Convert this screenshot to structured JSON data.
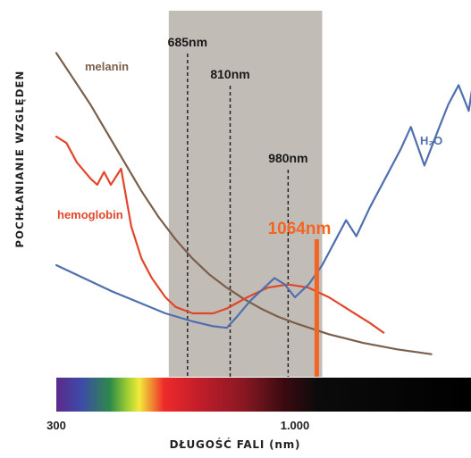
{
  "chart_data": {
    "type": "line",
    "ylabel": "POCHŁANIANIE WZGLĘDEN",
    "xlabel": "DŁUGOŚĆ FALI (nm)",
    "xticks": [
      {
        "value": 300,
        "label": "300"
      },
      {
        "value": 1000,
        "label": "1.000"
      }
    ],
    "markers": [
      {
        "wavelength": 685,
        "label": "685nm"
      },
      {
        "wavelength": 810,
        "label": "810nm"
      },
      {
        "wavelength": 980,
        "label": "980nm"
      }
    ],
    "laser": {
      "wavelength": 1064,
      "label": "1064nm",
      "color": "#f26522"
    },
    "highlight_band": [
      630,
      1080
    ],
    "series": [
      {
        "name": "melanin",
        "label": "melanin",
        "color": "#7b5f4a",
        "points": [
          [
            300,
            96
          ],
          [
            350,
            88
          ],
          [
            400,
            80
          ],
          [
            450,
            71
          ],
          [
            500,
            62
          ],
          [
            550,
            53
          ],
          [
            600,
            45
          ],
          [
            650,
            38
          ],
          [
            700,
            32
          ],
          [
            750,
            27
          ],
          [
            800,
            23
          ],
          [
            850,
            19.5
          ],
          [
            900,
            16.5
          ],
          [
            950,
            14
          ],
          [
            1000,
            12
          ],
          [
            1100,
            8.5
          ],
          [
            1200,
            5.8
          ],
          [
            1300,
            3.8
          ],
          [
            1400,
            2.3
          ]
        ]
      },
      {
        "name": "hemoglobin",
        "label": "hemoglobin",
        "color": "#e2462a",
        "points": [
          [
            300,
            70
          ],
          [
            330,
            68
          ],
          [
            360,
            62
          ],
          [
            400,
            57
          ],
          [
            420,
            55
          ],
          [
            440,
            59
          ],
          [
            460,
            55
          ],
          [
            490,
            60
          ],
          [
            520,
            42
          ],
          [
            550,
            32
          ],
          [
            580,
            26
          ],
          [
            620,
            20
          ],
          [
            650,
            17
          ],
          [
            700,
            15
          ],
          [
            760,
            15
          ],
          [
            800,
            16.5
          ],
          [
            860,
            20
          ],
          [
            920,
            23
          ],
          [
            980,
            24
          ],
          [
            1040,
            23
          ],
          [
            1100,
            20
          ],
          [
            1160,
            16
          ],
          [
            1220,
            12
          ],
          [
            1260,
            9
          ]
        ]
      },
      {
        "name": "H₂O",
        "label": "H₂O",
        "color": "#4f6fae",
        "points": [
          [
            300,
            30
          ],
          [
            380,
            26
          ],
          [
            460,
            22
          ],
          [
            540,
            18.5
          ],
          [
            620,
            15
          ],
          [
            700,
            12.5
          ],
          [
            760,
            11
          ],
          [
            800,
            10.5
          ],
          [
            830,
            14
          ],
          [
            870,
            19
          ],
          [
            910,
            23
          ],
          [
            940,
            26
          ],
          [
            970,
            24
          ],
          [
            1000,
            20
          ],
          [
            1040,
            24
          ],
          [
            1080,
            30
          ],
          [
            1120,
            38
          ],
          [
            1150,
            44
          ],
          [
            1180,
            39
          ],
          [
            1220,
            48
          ],
          [
            1270,
            58
          ],
          [
            1310,
            66
          ],
          [
            1340,
            73
          ],
          [
            1380,
            61
          ],
          [
            1420,
            72
          ],
          [
            1450,
            80
          ],
          [
            1480,
            86
          ],
          [
            1510,
            78
          ],
          [
            1530,
            92
          ],
          [
            1560,
            100
          ]
        ]
      }
    ],
    "spectrum_colors": [
      "#5b2a8a",
      "#3d4aa8",
      "#2d8a4a",
      "#9acd32",
      "#f2ea3a",
      "#ee2a2a",
      "#c41e2a",
      "#8a1822",
      "#3a0a10",
      "#0b0b0b",
      "#000000"
    ],
    "colors": {
      "band": "#c2bcb6",
      "marker_line": "#1a1a1a",
      "axis_text": "#222222"
    }
  }
}
